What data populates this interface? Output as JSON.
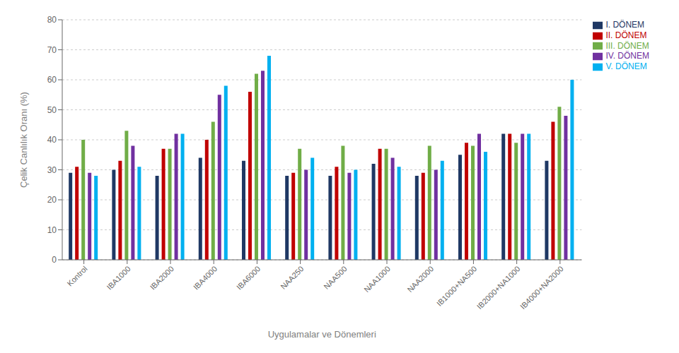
{
  "chart_data": {
    "type": "bar",
    "categories": [
      "Kontrol",
      "IBA1000",
      "IBA2000",
      "IBA4000",
      "IBA6000",
      "NAA250",
      "NAA500",
      "NAA1000",
      "NAA2000",
      "IB1000+NA500",
      "IB2000+NA1000",
      "IB4000+NA2000"
    ],
    "series": [
      {
        "name": "I. DÖNEM",
        "color": "#1F3864",
        "values": [
          29,
          30,
          28,
          34,
          33,
          28,
          28,
          32,
          28,
          35,
          42,
          33
        ]
      },
      {
        "name": "II. DÖNEM",
        "color": "#C00000",
        "values": [
          31,
          33,
          37,
          40,
          56,
          29,
          31,
          37,
          29,
          39,
          42,
          46
        ]
      },
      {
        "name": "III. DÖNEM",
        "color": "#70AD47",
        "values": [
          40,
          43,
          37,
          46,
          62,
          37,
          38,
          37,
          38,
          38,
          39,
          51
        ]
      },
      {
        "name": "IV. DÖNEM",
        "color": "#7030A0",
        "values": [
          29,
          38,
          42,
          55,
          63,
          30,
          29,
          34,
          30,
          42,
          42,
          48
        ]
      },
      {
        "name": "V. DÖNEM",
        "color": "#00B0F0",
        "values": [
          28,
          31,
          42,
          58,
          68,
          34,
          30,
          31,
          33,
          36,
          42,
          60
        ]
      }
    ],
    "ylabel": "Çelik Canlılık Oranı (%)",
    "xlabel": "Uygulamalar ve Dönemleri",
    "ylim": [
      0,
      80
    ],
    "yticks": [
      0,
      10,
      20,
      30,
      40,
      50,
      60,
      70,
      80
    ],
    "grid": true,
    "legend": "right"
  }
}
